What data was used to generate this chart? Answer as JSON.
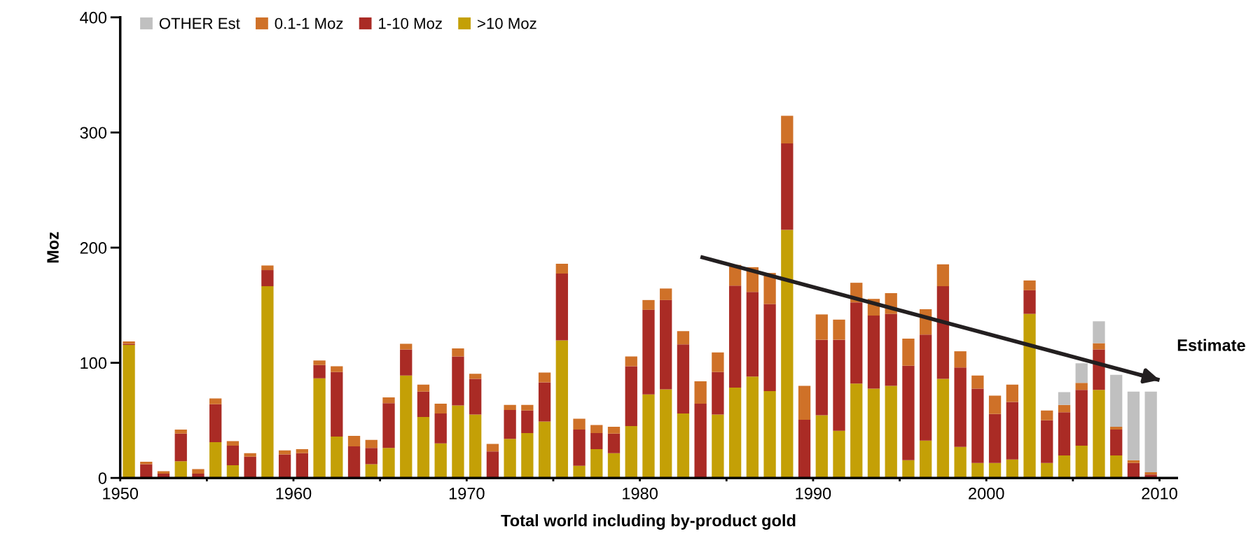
{
  "chart_data": {
    "type": "bar",
    "stacked": true,
    "xlabel": "Total world including by-product gold",
    "ylabel": "Moz",
    "x": [
      1950.5,
      1951.5,
      1952.5,
      1953.5,
      1954.5,
      1955.5,
      1956.5,
      1957.5,
      1958.5,
      1959.5,
      1960.5,
      1961.5,
      1962.5,
      1963.5,
      1964.5,
      1965.5,
      1966.5,
      1967.5,
      1968.5,
      1969.5,
      1970.5,
      1971.5,
      1972.5,
      1973.5,
      1974.5,
      1975.5,
      1976.5,
      1977.5,
      1978.5,
      1979.5,
      1980.5,
      1981.5,
      1982.5,
      1983.5,
      1984.5,
      1985.5,
      1986.5,
      1987.5,
      1988.5,
      1989.5,
      1990.5,
      1991.5,
      1992.5,
      1993.5,
      1994.5,
      1995.5,
      1996.5,
      1997.5,
      1998.5,
      1999.5,
      2000.5,
      2001.5,
      2002.5,
      2003.5,
      2004.5,
      2005.5,
      2006.5,
      2007.5,
      2008.5,
      2009.5
    ],
    "series": [
      {
        "name": ">10 Moz",
        "color": "#c4a006",
        "values": [
          115.5,
          0,
          0,
          14.5,
          0,
          31,
          11,
          0,
          166.5,
          0,
          0,
          86.5,
          36,
          0,
          12,
          26,
          89,
          53,
          30,
          63,
          55,
          0,
          34,
          39,
          49,
          119.5,
          10.5,
          25,
          21.5,
          45,
          72.5,
          77,
          56,
          0,
          55,
          78.5,
          88,
          75.5,
          215.5,
          0,
          54.5,
          41,
          82,
          77.5,
          80,
          15.5,
          32.5,
          86,
          27,
          13,
          13,
          16,
          142.5,
          13,
          19.5,
          28,
          76.5,
          19.5,
          0,
          0
        ]
      },
      {
        "name": "1-10 Moz",
        "color": "#aa2b25",
        "values": [
          1,
          12,
          3.7,
          24,
          3.7,
          33,
          17,
          18.5,
          14,
          20.5,
          21.5,
          11.5,
          56,
          27.5,
          14,
          39,
          22.5,
          22,
          26,
          42.5,
          31,
          23,
          25,
          19.5,
          34,
          58,
          31.5,
          14,
          17,
          52,
          73.5,
          77.5,
          60,
          64.5,
          37,
          88.5,
          73.5,
          75.5,
          75,
          50.5,
          65.5,
          79,
          70.5,
          63.5,
          62.5,
          82,
          92,
          80.5,
          69,
          64.5,
          42.5,
          50,
          20.5,
          37,
          37.5,
          48.5,
          35,
          22.5,
          13,
          3
        ]
      },
      {
        "name": "0.1-1 Moz",
        "color": "#cf7128",
        "values": [
          2,
          2,
          2.2,
          3.5,
          4,
          5,
          4,
          3,
          4,
          3.5,
          3.5,
          4,
          5,
          9,
          7,
          5,
          5,
          6,
          8.5,
          7,
          4.5,
          6.5,
          4.5,
          5,
          8.5,
          8.5,
          9.5,
          7,
          6,
          8.5,
          8.5,
          10,
          11.5,
          19.5,
          17,
          18,
          21.5,
          27,
          24,
          29.5,
          22,
          17.5,
          17,
          14.5,
          18,
          23.5,
          22,
          19,
          14,
          11.5,
          16,
          15,
          8.5,
          8.5,
          6.5,
          6,
          5.5,
          2.5,
          2.5,
          2
        ]
      },
      {
        "name": "OTHER Est",
        "color": "#c0c0c0",
        "values": [
          null,
          null,
          null,
          null,
          null,
          null,
          null,
          null,
          null,
          null,
          null,
          null,
          null,
          null,
          null,
          null,
          null,
          null,
          null,
          null,
          null,
          null,
          null,
          null,
          null,
          null,
          null,
          null,
          null,
          null,
          null,
          null,
          null,
          null,
          null,
          null,
          null,
          null,
          null,
          null,
          null,
          null,
          null,
          null,
          null,
          null,
          null,
          null,
          null,
          null,
          null,
          null,
          null,
          null,
          11,
          17,
          19,
          45,
          59.5,
          70
        ]
      },
      {
        "type": "line",
        "x": [
          1983.5,
          2010
        ],
        "values": [
          192,
          85
        ],
        "color": "#231f20"
      }
    ],
    "xlim": [
      1950,
      2011
    ],
    "xticks": [
      1950,
      {
        "value": 1955,
        "label": null
      },
      1960,
      {
        "value": 1965,
        "label": null
      },
      1970,
      {
        "value": 1975,
        "label": null
      },
      1980,
      {
        "value": 1985,
        "label": null
      },
      1990,
      {
        "value": 1995,
        "label": null
      },
      2000,
      {
        "value": 2005,
        "label": null
      },
      2010
    ],
    "ylim": [
      0,
      400
    ],
    "yticks": [
      0,
      100,
      200,
      300,
      400
    ],
    "annotations": [
      "Estimate"
    ],
    "legend": "top left",
    "grid": false
  }
}
